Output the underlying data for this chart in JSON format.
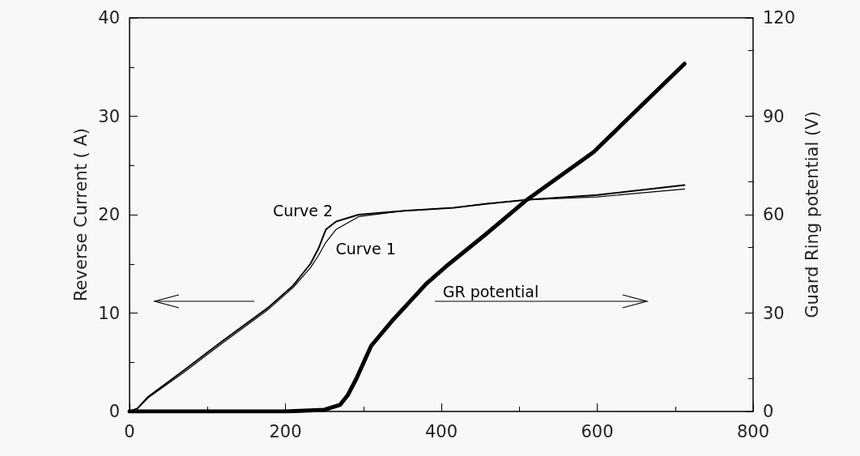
{
  "chart_data": {
    "type": "line",
    "ylabel": "Reverse Current ( A)",
    "y2label": "Guard Ring potential (V)",
    "xlim": [
      0,
      800
    ],
    "xticks": [
      0,
      200,
      400,
      600,
      800
    ],
    "ylim": [
      0,
      40
    ],
    "yticks": [
      0,
      10,
      20,
      30,
      40
    ],
    "y2lim": [
      0,
      120
    ],
    "y2ticks": [
      0,
      30,
      60,
      90,
      120
    ],
    "grid": false,
    "legend": false,
    "marker": "none",
    "line_style": "solid",
    "series": [
      {
        "name": "Curve 1",
        "color": "#000000",
        "x": [
          0,
          10,
          24,
          70,
          120,
          177,
          210,
          232,
          242,
          252,
          265,
          294,
          353,
          416,
          457,
          509,
          600,
          712
        ],
        "values": [
          0,
          0.3,
          1.4,
          4.0,
          7.0,
          10.3,
          12.6,
          14.6,
          15.8,
          17.2,
          18.5,
          19.8,
          20.4,
          20.7,
          21.1,
          21.5,
          21.8,
          22.6
        ]
      },
      {
        "name": "Curve 2",
        "color": "#000000",
        "x": [
          0,
          10,
          24,
          70,
          120,
          177,
          210,
          232,
          242,
          252,
          265,
          294,
          353,
          416,
          457,
          509,
          600,
          712
        ],
        "values": [
          0,
          0.3,
          1.5,
          4.2,
          7.2,
          10.5,
          12.8,
          15.0,
          16.5,
          18.5,
          19.3,
          20.0,
          20.4,
          20.7,
          21.1,
          21.5,
          22.0,
          23.0
        ]
      },
      {
        "name": "GR potential",
        "color": "#000000",
        "axis": "y2",
        "x": [
          0,
          100,
          200,
          250,
          270,
          280,
          291,
          310,
          336,
          381,
          405,
          457,
          509,
          595,
          712
        ],
        "values": [
          0,
          0,
          0,
          0.5,
          2,
          5,
          10,
          20,
          27.4,
          39,
          44,
          54,
          64.4,
          79,
          106
        ]
      }
    ]
  }
}
